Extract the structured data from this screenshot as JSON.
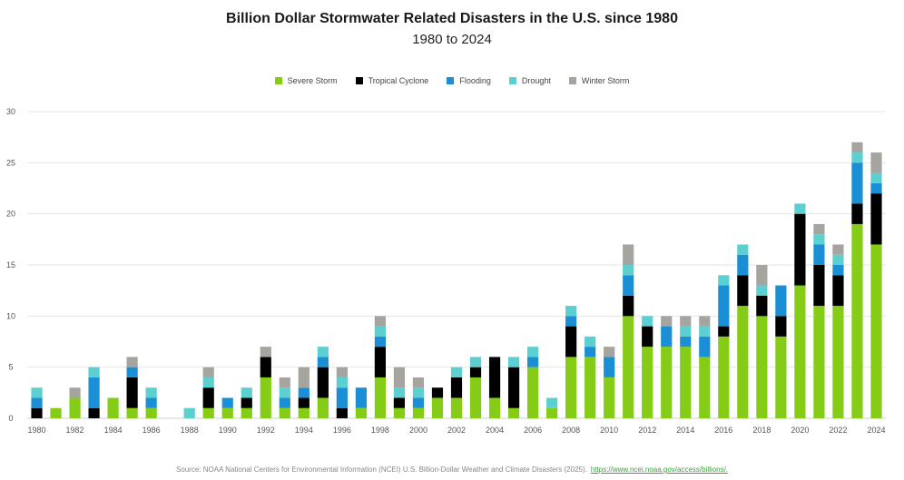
{
  "chart_data": {
    "type": "bar",
    "stacked": true,
    "title": "Billion Dollar Stormwater Related Disasters in the U.S. since 1980",
    "subtitle": "1980 to 2024",
    "xlabel": "",
    "ylabel": "",
    "ylim": [
      0,
      30
    ],
    "yticks": [
      "0",
      "5",
      "10",
      "15",
      "20",
      "25",
      "30"
    ],
    "ytick_values": [
      0,
      5,
      10,
      15,
      20,
      25,
      30
    ],
    "grid": true,
    "legend_position": "top-center",
    "categories": [
      "1980",
      "1981",
      "1982",
      "1983",
      "1984",
      "1985",
      "1986",
      "1987",
      "1988",
      "1989",
      "1990",
      "1991",
      "1992",
      "1993",
      "1994",
      "1995",
      "1996",
      "1997",
      "1998",
      "1999",
      "2000",
      "2001",
      "2002",
      "2003",
      "2004",
      "2005",
      "2006",
      "2007",
      "2008",
      "2009",
      "2010",
      "2011",
      "2012",
      "2013",
      "2014",
      "2015",
      "2016",
      "2017",
      "2018",
      "2019",
      "2020",
      "2021",
      "2022",
      "2023",
      "2024"
    ],
    "xtick_labels": [
      "1980",
      "1982",
      "1984",
      "1986",
      "1988",
      "1990",
      "1992",
      "1994",
      "1996",
      "1998",
      "2000",
      "2002",
      "2004",
      "2006",
      "2008",
      "2010",
      "2012",
      "2014",
      "2016",
      "2018",
      "2020",
      "2022",
      "2024"
    ],
    "series": [
      {
        "name": "Severe Storm",
        "color": "#84cc16",
        "values": [
          0,
          1,
          2,
          0,
          2,
          1,
          1,
          0,
          0,
          1,
          1,
          1,
          4,
          1,
          1,
          2,
          0,
          1,
          4,
          1,
          1,
          2,
          2,
          4,
          2,
          1,
          5,
          1,
          6,
          6,
          4,
          10,
          7,
          7,
          7,
          6,
          8,
          11,
          10,
          8,
          13,
          11,
          11,
          19,
          17
        ]
      },
      {
        "name": "Tropical Cyclone",
        "color": "#000000",
        "values": [
          1,
          0,
          0,
          1,
          0,
          3,
          0,
          0,
          0,
          2,
          0,
          1,
          2,
          0,
          1,
          3,
          1,
          0,
          3,
          1,
          0,
          1,
          2,
          1,
          4,
          4,
          0,
          0,
          3,
          0,
          0,
          2,
          2,
          0,
          0,
          0,
          1,
          3,
          2,
          2,
          7,
          4,
          3,
          2,
          5
        ]
      },
      {
        "name": "Flooding",
        "color": "#1a8fd6",
        "values": [
          1,
          0,
          0,
          3,
          0,
          1,
          1,
          0,
          0,
          0,
          1,
          0,
          0,
          1,
          1,
          1,
          2,
          2,
          1,
          0,
          1,
          0,
          0,
          0,
          0,
          0,
          1,
          0,
          1,
          1,
          2,
          2,
          0,
          2,
          1,
          2,
          4,
          2,
          0,
          3,
          0,
          2,
          1,
          4,
          1
        ]
      },
      {
        "name": "Drought",
        "color": "#5ccfd0",
        "values": [
          1,
          0,
          0,
          1,
          0,
          0,
          1,
          0,
          1,
          1,
          0,
          1,
          0,
          1,
          0,
          1,
          1,
          0,
          1,
          1,
          1,
          0,
          1,
          1,
          0,
          1,
          1,
          1,
          1,
          1,
          0,
          1,
          1,
          0,
          1,
          1,
          1,
          1,
          1,
          0,
          1,
          1,
          1,
          1,
          1
        ]
      },
      {
        "name": "Winter Storm",
        "color": "#a6a49f",
        "values": [
          0,
          0,
          1,
          0,
          0,
          1,
          0,
          0,
          0,
          1,
          0,
          0,
          1,
          1,
          2,
          0,
          1,
          0,
          1,
          2,
          1,
          0,
          0,
          0,
          0,
          0,
          0,
          0,
          0,
          0,
          1,
          2,
          0,
          1,
          1,
          1,
          0,
          0,
          2,
          0,
          0,
          1,
          1,
          1,
          2
        ]
      }
    ]
  },
  "source": {
    "text": "Source: NOAA National Centers for Environmental Information (NCEI) U.S. Billion-Dollar Weather and Climate Disasters (2025).",
    "link": "https://www.ncei.noaa.gov/access/billions/."
  }
}
